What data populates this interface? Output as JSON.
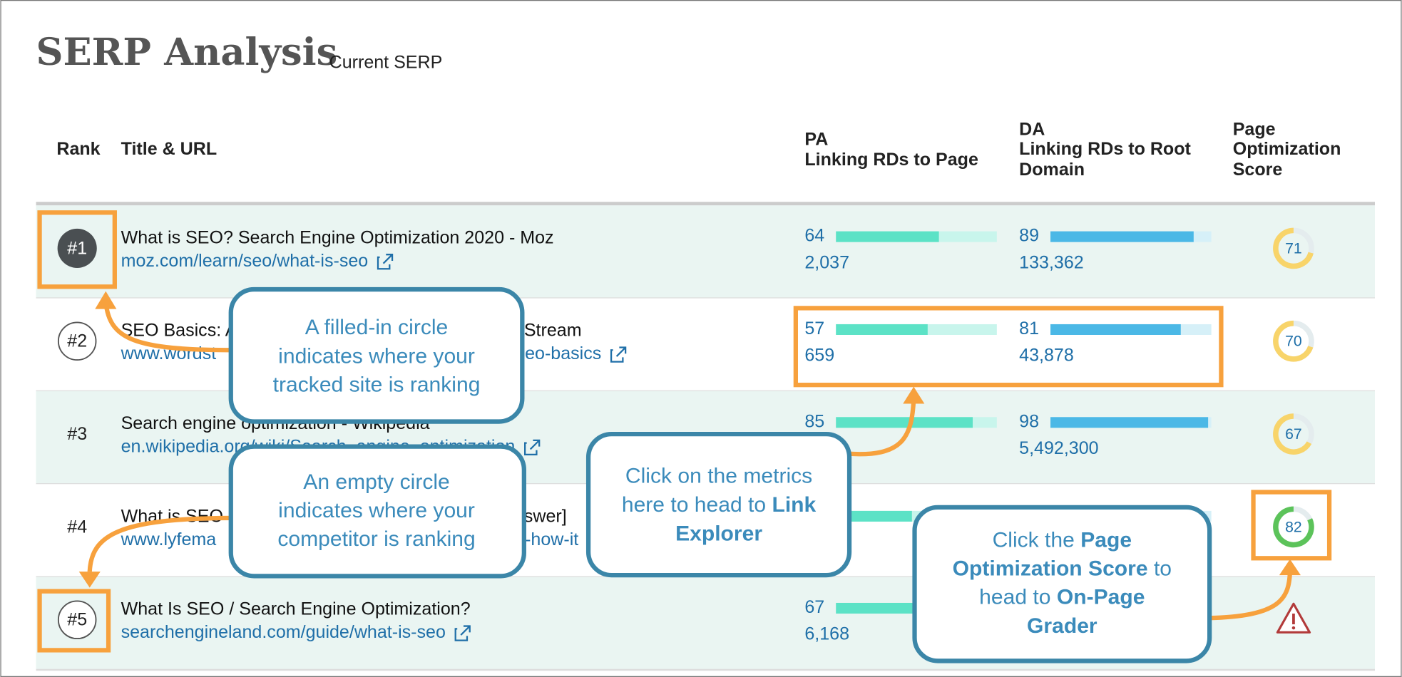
{
  "header": {
    "title": "SERP Analysis",
    "subtitle": "Current SERP"
  },
  "table": {
    "columns": {
      "rank": "Rank",
      "title": "Title & URL",
      "pa": [
        "PA",
        "Linking RDs to Page"
      ],
      "da": [
        "DA",
        "Linking RDs to Root",
        "Domain"
      ],
      "score": [
        "Page",
        "Optimization",
        "Score"
      ]
    },
    "rows": [
      {
        "rank": "#1",
        "rank_style": "filled",
        "title": [
          "What is SEO? Search Engine Optimization 2020 - Moz"
        ],
        "url": [
          "moz.com/learn/seo/what-is-seo"
        ],
        "pa": 64,
        "pa_links": "2,037",
        "da": 89,
        "da_links": "133,362",
        "score": 71
      },
      {
        "rank": "#2",
        "rank_style": "outline",
        "title": [
          "SEO Basics: A",
          "Stream"
        ],
        "url": [
          "www.wordst",
          "eo-basics"
        ],
        "pa": 57,
        "pa_links": "659",
        "da": 81,
        "da_links": "43,878",
        "score": 70
      },
      {
        "rank": "#3",
        "rank_style": "plain",
        "title": [
          "Search engine optimization - Wikipedia"
        ],
        "url": [
          "en.wikipedia.org/wiki/Search_engine_optimization"
        ],
        "pa": 85,
        "da": 98,
        "da_links": "5,492,300",
        "score": 67
      },
      {
        "rank": "#4",
        "rank_style": "plain",
        "title": [
          "What is SEO",
          "swer]"
        ],
        "url": [
          "www.lyfema",
          "-how-it"
        ],
        "score": 82
      },
      {
        "rank": "#5",
        "rank_style": "outline",
        "title": [
          "What Is SEO / Search Engine Optimization?"
        ],
        "url": [
          "searchengineland.com/guide/what-is-seo"
        ],
        "pa": 67,
        "pa_links": "6,168",
        "warning": true
      }
    ]
  },
  "callouts": [
    {
      "lines": [
        [
          {
            "text": "A filled-in circle"
          }
        ],
        [
          {
            "text": "indicates where your"
          }
        ],
        [
          {
            "text": "tracked site is ranking"
          }
        ]
      ]
    },
    {
      "lines": [
        [
          {
            "text": "An empty circle"
          }
        ],
        [
          {
            "text": "indicates where your"
          }
        ],
        [
          {
            "text": "competitor is ranking"
          }
        ]
      ]
    },
    {
      "lines": [
        [
          {
            "text": "Click on the metrics"
          }
        ],
        [
          {
            "text": "here to head to "
          },
          {
            "text": "Link",
            "bold": true
          }
        ],
        [
          {
            "text": "Explorer",
            "bold": true
          }
        ]
      ]
    },
    {
      "lines": [
        [
          {
            "text": "Click the "
          },
          {
            "text": "Page",
            "bold": true
          }
        ],
        [
          {
            "text": "Optimization Score",
            "bold": true
          },
          {
            "text": "  to"
          }
        ],
        [
          {
            "text": "head to "
          },
          {
            "text": "On-Page",
            "bold": true
          }
        ],
        [
          {
            "text": "Grader",
            "bold": true
          }
        ]
      ]
    }
  ]
}
